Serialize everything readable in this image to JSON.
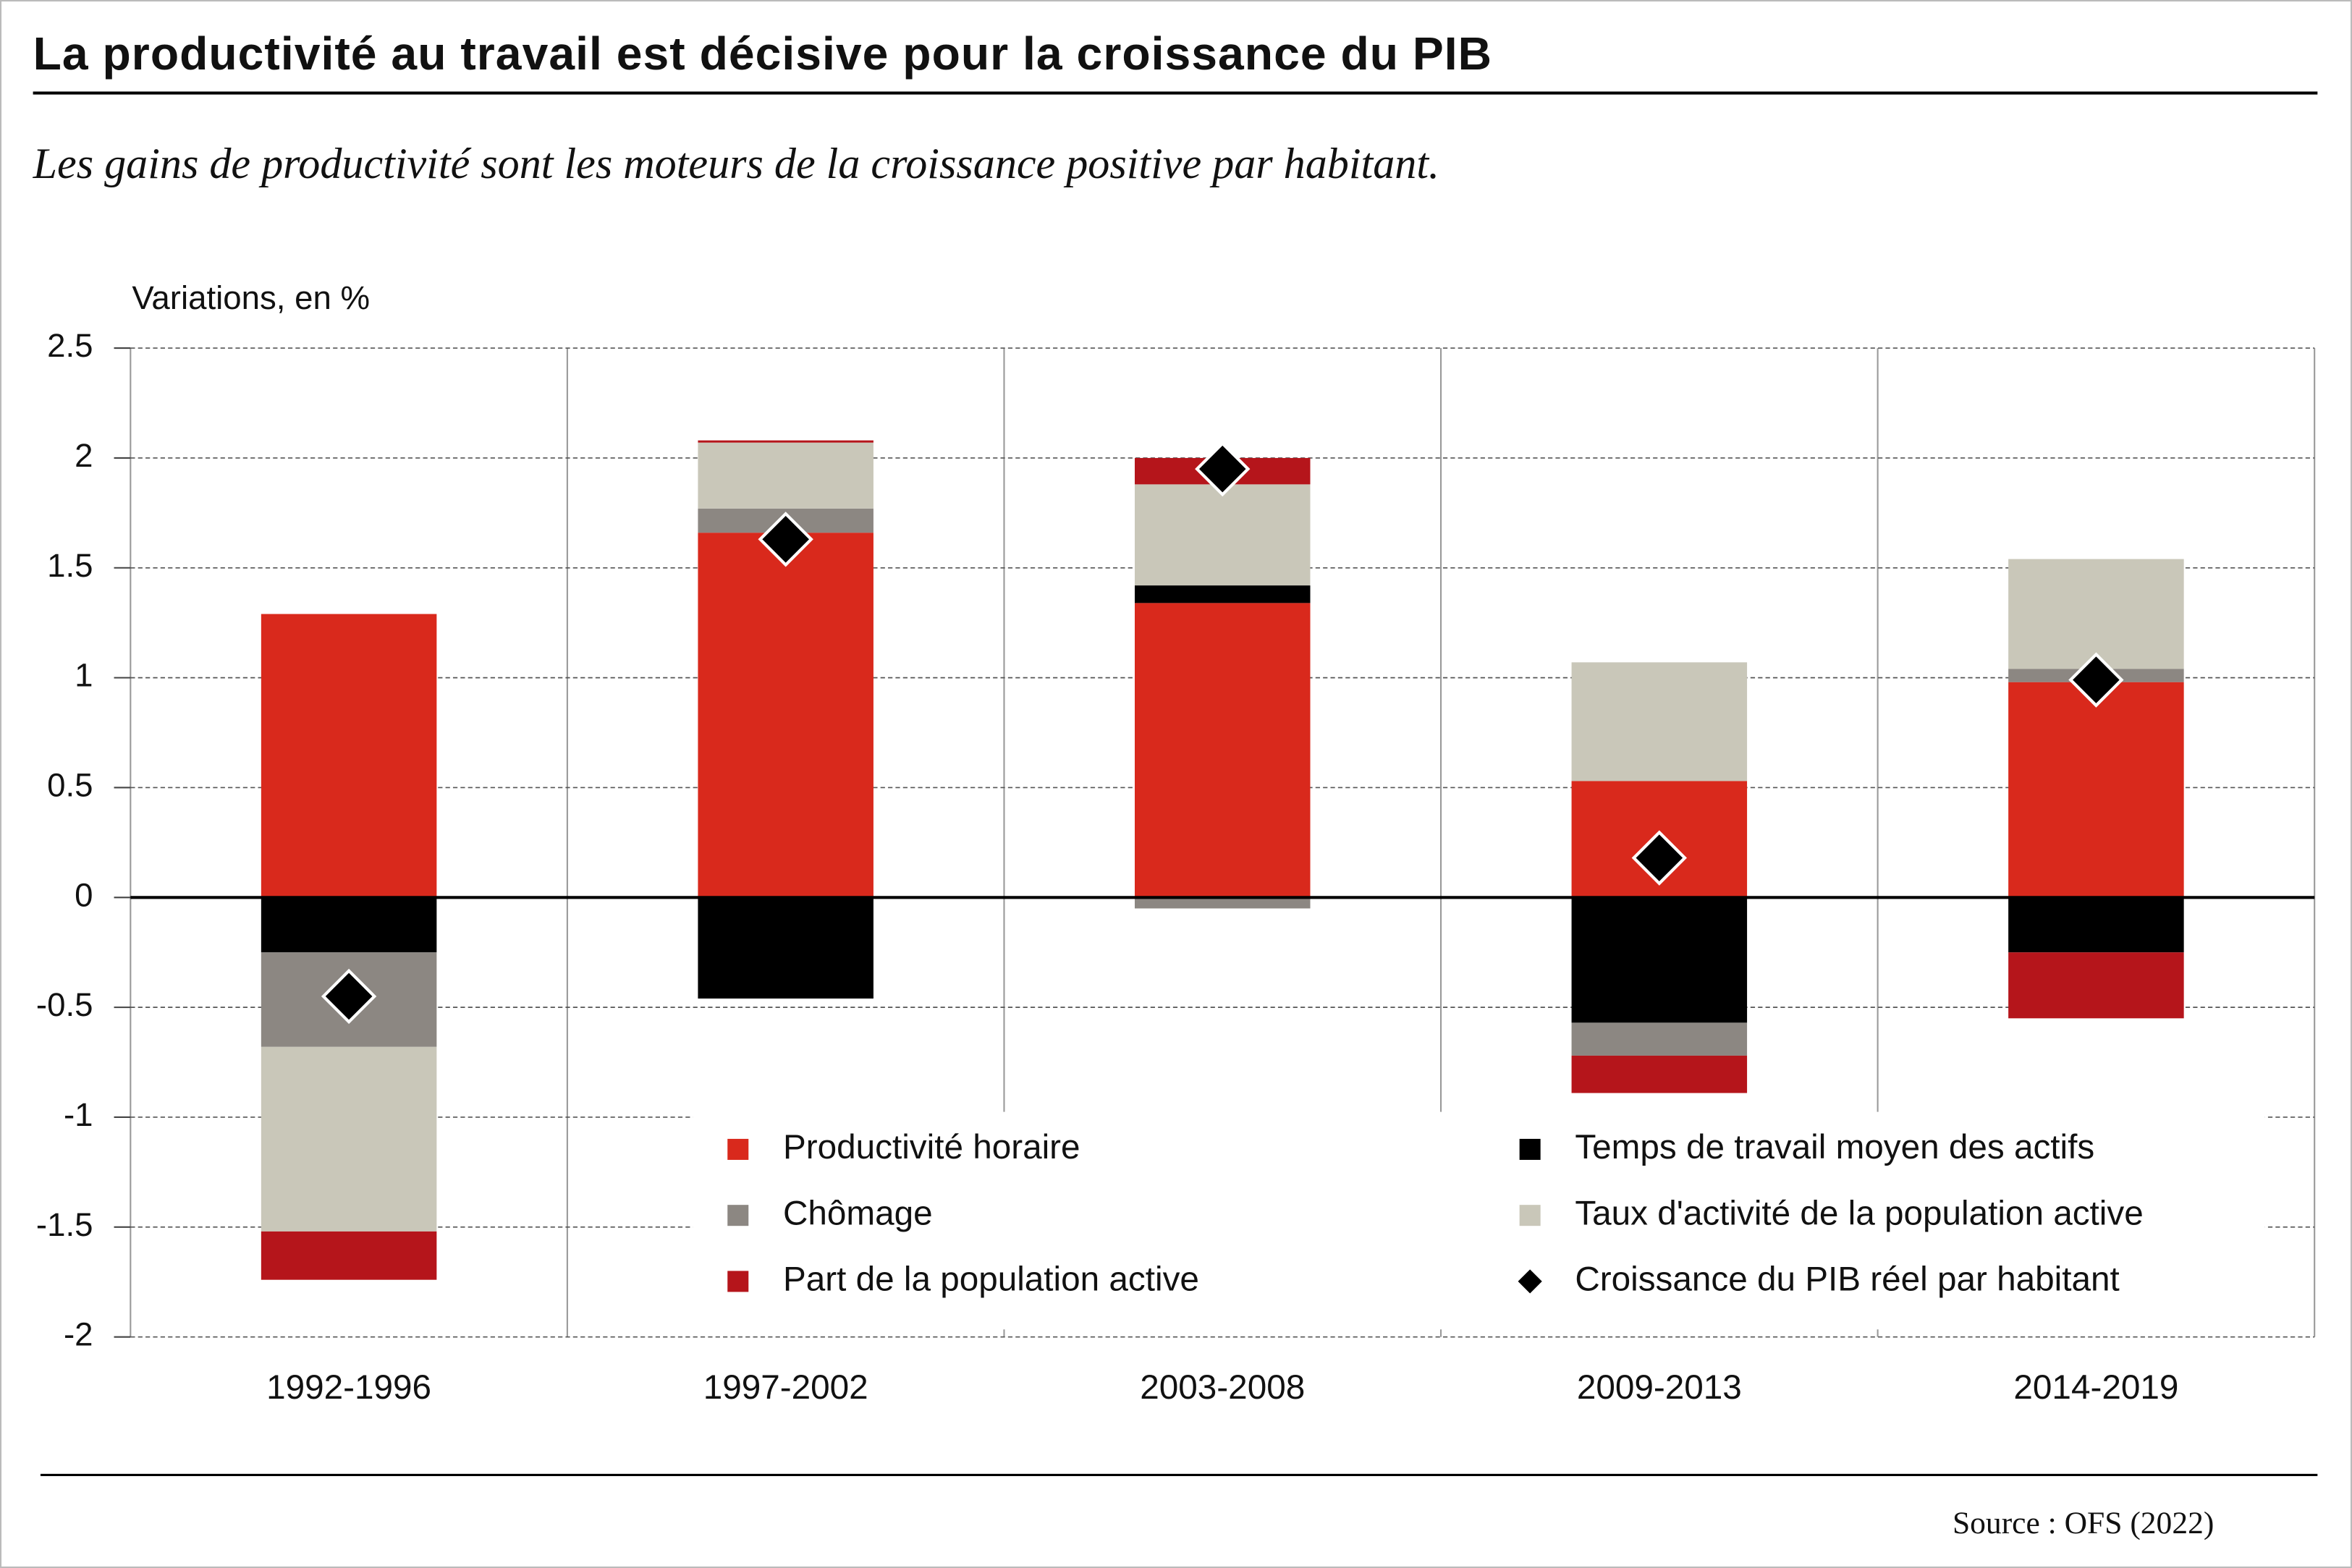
{
  "chart_data": {
    "type": "bar",
    "stacked": true,
    "title": "La productivité au travail est décisive pour la croissance du PIB",
    "subtitle": "Les gains de productivité sont les moteurs de la croissance positive par habitant.",
    "y_label": "Variations, en %",
    "source": "Source : OFS (2022)",
    "categories": [
      "1992-1996",
      "1997-2002",
      "2003-2008",
      "2009-2013",
      "2014-2019"
    ],
    "series": [
      {
        "name": "Productivité horaire",
        "color": "#d9291c",
        "values": [
          1.29,
          1.66,
          1.34,
          0.53,
          0.98
        ]
      },
      {
        "name": "Temps de travail moyen des actifs",
        "color": "#000000",
        "values": [
          -0.25,
          -0.46,
          0.08,
          -0.57,
          -0.25
        ]
      },
      {
        "name": "Chômage",
        "color": "#8c8782",
        "values": [
          -0.43,
          0.11,
          -0.05,
          -0.15,
          0.06
        ]
      },
      {
        "name": "Taux d'activité de la population active",
        "color": "#c9c7b9",
        "values": [
          -0.84,
          0.3,
          0.46,
          0.54,
          0.5
        ]
      },
      {
        "name": "Part de la population active",
        "color": "#b5151b",
        "values": [
          -0.22,
          0.01,
          0.12,
          -0.17,
          -0.3
        ]
      },
      {
        "name": "Croissance du PIB réel par habitant",
        "type": "scatter",
        "marker": "diamond",
        "color": "#000000",
        "values": [
          -0.45,
          1.63,
          1.95,
          0.18,
          0.99
        ]
      }
    ],
    "ylim": [
      -2,
      2.5
    ],
    "yticks": [
      2.5,
      2,
      1.5,
      1,
      0.5,
      0,
      -0.5,
      -1,
      -1.5,
      -2
    ],
    "grid": true
  }
}
